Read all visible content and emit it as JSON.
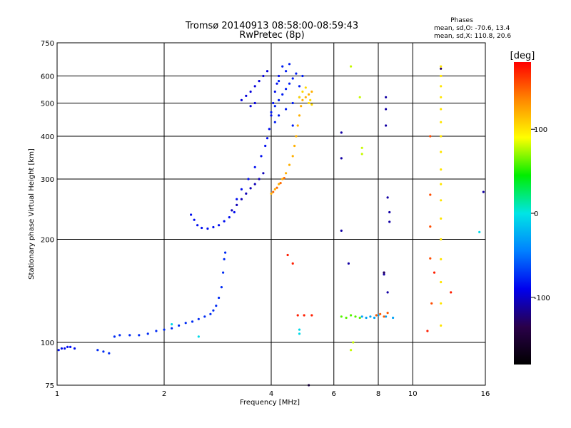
{
  "chart_data": {
    "type": "scatter",
    "title": "Tromsø 20140913 08:58:00-08:59:43",
    "subtitle": "RwPretec (8p)",
    "xlabel": "Frequency [MHz]",
    "ylabel": "Stationary phase Virtual Height [km]",
    "xscale": "log",
    "yscale": "log",
    "xlim": [
      1,
      16
    ],
    "ylim": [
      75,
      750
    ],
    "x_ticks": [
      1,
      2,
      4,
      6,
      8,
      10,
      16
    ],
    "y_ticks": [
      75,
      100,
      200,
      300,
      400,
      500,
      600,
      750
    ],
    "grid": true,
    "stats": {
      "heading": "Phases",
      "line_o": "mean, sd,O: -70.6, 13.4",
      "line_x": "mean, sd,X: 110.8, 20.6"
    },
    "colorbar": {
      "label": "[deg]",
      "range": [
        -180,
        180
      ],
      "ticks": [
        100,
        0,
        -100
      ],
      "colors": [
        "#ff0000",
        "#ff8800",
        "#ffff00",
        "#00ee00",
        "#00e5e5",
        "#0080ff",
        "#0000ee",
        "#2a004a",
        "#000000"
      ]
    },
    "traces": [
      {
        "name": "",
        "phase": -85,
        "points": [
          [
            1.01,
            95
          ],
          [
            1.03,
            96
          ],
          [
            1.05,
            96
          ],
          [
            1.07,
            97
          ],
          [
            1.09,
            97
          ],
          [
            1.12,
            96
          ]
        ]
      },
      {
        "name": "",
        "phase": -75,
        "points": [
          [
            1.3,
            95
          ],
          [
            1.35,
            94
          ],
          [
            1.4,
            93
          ],
          [
            1.45,
            104
          ],
          [
            1.5,
            105
          ],
          [
            1.6,
            105
          ],
          [
            1.7,
            105
          ],
          [
            1.8,
            106
          ],
          [
            1.9,
            108
          ],
          [
            2.0,
            109
          ],
          [
            2.1,
            110
          ],
          [
            2.2,
            112
          ],
          [
            2.3,
            114
          ],
          [
            2.4,
            115
          ],
          [
            2.5,
            117
          ],
          [
            2.6,
            119
          ],
          [
            2.7,
            121
          ],
          [
            2.75,
            124
          ],
          [
            2.8,
            128
          ],
          [
            2.85,
            135
          ],
          [
            2.9,
            145
          ],
          [
            2.93,
            160
          ],
          [
            2.95,
            175
          ],
          [
            2.97,
            183
          ]
        ]
      },
      {
        "name": "",
        "phase": -85,
        "points": [
          [
            2.38,
            236
          ],
          [
            2.43,
            228
          ],
          [
            2.48,
            220
          ],
          [
            2.55,
            216
          ],
          [
            2.65,
            215
          ],
          [
            2.75,
            217
          ],
          [
            2.85,
            220
          ],
          [
            2.95,
            226
          ],
          [
            3.05,
            232
          ],
          [
            3.15,
            240
          ],
          [
            3.2,
            262
          ],
          [
            3.3,
            280
          ],
          [
            3.45,
            300
          ],
          [
            3.6,
            325
          ],
          [
            3.75,
            350
          ],
          [
            3.85,
            375
          ],
          [
            3.9,
            395
          ],
          [
            3.95,
            420
          ],
          [
            4.0,
            460
          ],
          [
            4.05,
            500
          ],
          [
            4.1,
            540
          ],
          [
            4.15,
            570
          ],
          [
            4.2,
            600
          ]
        ]
      },
      {
        "name": "",
        "phase": -105,
        "points": [
          [
            3.1,
            243
          ],
          [
            3.2,
            252
          ],
          [
            3.3,
            262
          ],
          [
            3.4,
            272
          ],
          [
            3.5,
            282
          ],
          [
            3.6,
            290
          ],
          [
            3.7,
            300
          ],
          [
            3.8,
            312
          ]
        ]
      },
      {
        "name": "",
        "phase": -95,
        "points": [
          [
            3.3,
            510
          ],
          [
            3.4,
            525
          ],
          [
            3.5,
            540
          ],
          [
            3.6,
            560
          ],
          [
            3.7,
            580
          ],
          [
            3.8,
            600
          ],
          [
            3.9,
            620
          ],
          [
            3.5,
            490
          ],
          [
            3.6,
            500
          ]
        ]
      },
      {
        "name": "",
        "phase": -80,
        "points": [
          [
            4.0,
            470
          ],
          [
            4.1,
            490
          ],
          [
            4.2,
            510
          ],
          [
            4.3,
            530
          ],
          [
            4.4,
            550
          ],
          [
            4.5,
            570
          ],
          [
            4.6,
            590
          ],
          [
            4.7,
            610
          ],
          [
            4.3,
            640
          ],
          [
            4.5,
            650
          ],
          [
            4.2,
            460
          ],
          [
            4.4,
            480
          ],
          [
            4.6,
            500
          ],
          [
            4.8,
            520
          ],
          [
            4.4,
            620
          ],
          [
            4.6,
            430
          ],
          [
            4.8,
            560
          ],
          [
            4.9,
            600
          ],
          [
            4.2,
            580
          ],
          [
            4.1,
            440
          ]
        ]
      },
      {
        "name": "",
        "phase": 120,
        "points": [
          [
            4.0,
            272
          ],
          [
            4.1,
            280
          ],
          [
            4.2,
            290
          ],
          [
            4.3,
            300
          ],
          [
            4.4,
            312
          ],
          [
            4.5,
            330
          ],
          [
            4.6,
            350
          ],
          [
            4.65,
            375
          ],
          [
            4.7,
            400
          ],
          [
            4.75,
            430
          ],
          [
            4.8,
            460
          ],
          [
            4.85,
            490
          ],
          [
            4.9,
            510
          ],
          [
            5.0,
            520
          ],
          [
            5.1,
            530
          ],
          [
            5.2,
            540
          ]
        ]
      },
      {
        "name": "",
        "phase": 145,
        "points": [
          [
            4.05,
            275
          ],
          [
            4.15,
            283
          ],
          [
            4.25,
            292
          ],
          [
            4.35,
            302
          ]
        ]
      },
      {
        "name": "",
        "phase": 105,
        "points": [
          [
            4.8,
            520
          ],
          [
            4.9,
            540
          ],
          [
            5.0,
            555
          ],
          [
            5.1,
            500
          ],
          [
            5.2,
            495
          ],
          [
            5.15,
            510
          ]
        ]
      },
      {
        "name": "",
        "phase": 60,
        "points": [
          [
            6.3,
            119
          ],
          [
            6.5,
            118
          ],
          [
            6.7,
            120
          ],
          [
            6.9,
            119
          ],
          [
            7.1,
            118
          ]
        ]
      },
      {
        "name": "",
        "phase": -30,
        "points": [
          [
            7.2,
            119
          ],
          [
            7.4,
            118
          ],
          [
            7.6,
            119
          ],
          [
            7.8,
            118
          ],
          [
            8.0,
            120
          ],
          [
            8.4,
            119
          ],
          [
            8.8,
            118
          ]
        ]
      },
      {
        "name": "",
        "phase": 150,
        "points": [
          [
            7.9,
            120
          ],
          [
            8.1,
            121
          ],
          [
            8.3,
            119
          ],
          [
            8.5,
            122
          ]
        ]
      },
      {
        "name": "",
        "phase": 100,
        "points": [
          [
            12.0,
            640
          ],
          [
            12.0,
            600
          ],
          [
            12.0,
            560
          ],
          [
            12.0,
            520
          ],
          [
            12.0,
            480
          ],
          [
            12.0,
            440
          ],
          [
            12.0,
            400
          ],
          [
            12.0,
            360
          ],
          [
            12.0,
            320
          ],
          [
            12.0,
            290
          ],
          [
            12.0,
            260
          ],
          [
            12.0,
            230
          ],
          [
            12.0,
            200
          ],
          [
            12.0,
            175
          ],
          [
            12.0,
            150
          ],
          [
            12.0,
            130
          ],
          [
            12.0,
            112
          ]
        ]
      },
      {
        "name": "",
        "phase": 155,
        "points": [
          [
            11.2,
            400
          ],
          [
            11.2,
            270
          ],
          [
            11.2,
            218
          ],
          [
            11.2,
            176
          ],
          [
            11.3,
            130
          ]
        ]
      },
      {
        "name": "",
        "phase": 170,
        "points": [
          [
            4.45,
            180
          ],
          [
            4.6,
            170
          ],
          [
            4.75,
            120
          ],
          [
            4.95,
            120
          ],
          [
            5.2,
            120
          ],
          [
            11.0,
            108
          ],
          [
            11.5,
            160
          ],
          [
            12.8,
            140
          ]
        ]
      },
      {
        "name": "",
        "phase": -110,
        "points": [
          [
            6.3,
            410
          ],
          [
            6.3,
            345
          ],
          [
            6.3,
            212
          ],
          [
            6.6,
            170
          ],
          [
            8.4,
            520
          ],
          [
            8.4,
            480
          ],
          [
            8.4,
            430
          ],
          [
            8.5,
            265
          ],
          [
            8.6,
            240
          ],
          [
            8.6,
            225
          ],
          [
            8.3,
            160
          ],
          [
            8.3,
            158
          ],
          [
            8.5,
            140
          ],
          [
            15.8,
            275
          ]
        ]
      },
      {
        "name": "",
        "phase": 80,
        "points": [
          [
            6.7,
            640
          ],
          [
            7.1,
            520
          ],
          [
            7.2,
            370
          ],
          [
            7.2,
            355
          ],
          [
            6.7,
            95
          ],
          [
            6.8,
            100
          ]
        ]
      },
      {
        "name": "",
        "phase": -5,
        "points": [
          [
            4.8,
            109
          ],
          [
            4.8,
            106
          ],
          [
            15.4,
            210
          ],
          [
            2.1,
            113
          ],
          [
            2.5,
            104
          ]
        ]
      },
      {
        "name": "",
        "phase": -130,
        "points": [
          [
            5.1,
            75
          ],
          [
            12.0,
            630
          ],
          [
            8.3,
            160
          ]
        ]
      }
    ]
  }
}
